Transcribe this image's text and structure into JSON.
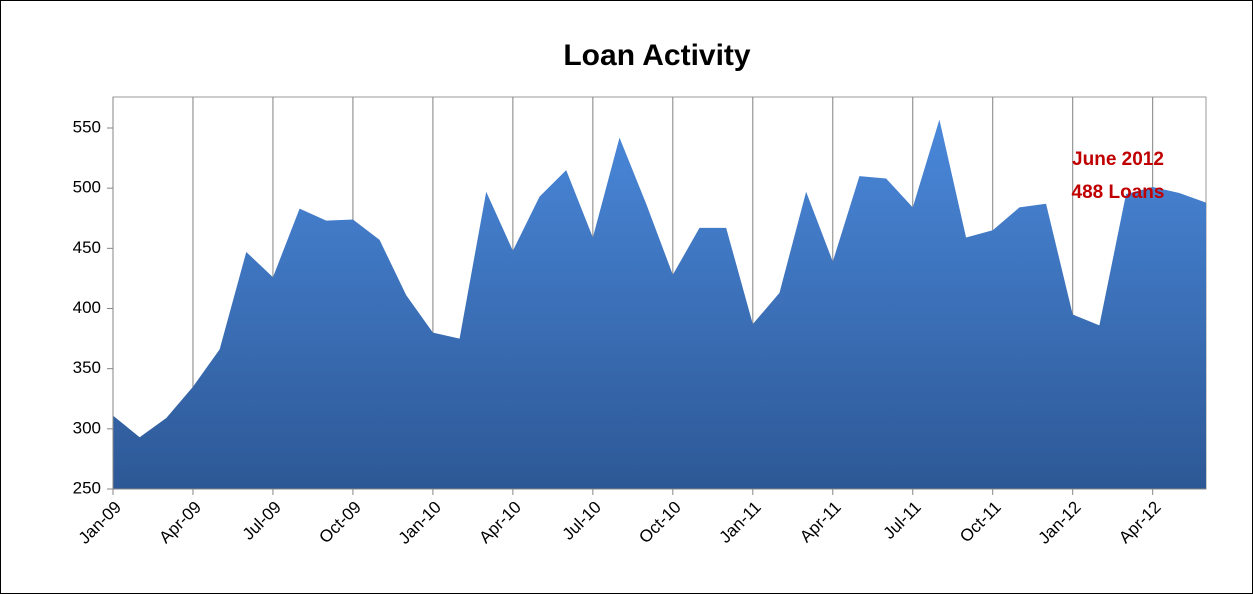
{
  "chart_data": {
    "type": "area",
    "title": "Loan Activity",
    "categories": [
      "Jan-09",
      null,
      null,
      "Apr-09",
      null,
      null,
      "Jul-09",
      null,
      null,
      "Oct-09",
      null,
      null,
      "Jan-10",
      null,
      null,
      "Apr-10",
      null,
      null,
      "Jul-10",
      null,
      null,
      "Oct-10",
      null,
      null,
      "Jan-11",
      null,
      null,
      "Apr-11",
      null,
      null,
      "Jul-11",
      null,
      null,
      "Oct-11",
      null,
      null,
      "Jan-12",
      null,
      null,
      "Apr-12",
      null,
      null
    ],
    "values": [
      311,
      293,
      309,
      335,
      366,
      447,
      426,
      483,
      473,
      474,
      457,
      411,
      380,
      375,
      497,
      448,
      493,
      515,
      459,
      542,
      487,
      428,
      467,
      467,
      387,
      413,
      497,
      439,
      510,
      508,
      484,
      557,
      459,
      465,
      484,
      487,
      395,
      386,
      495,
      501,
      496,
      488
    ],
    "color": "#3b72bd",
    "ylim": [
      250,
      550
    ],
    "yticks": [
      250,
      300,
      350,
      400,
      450,
      500,
      550
    ],
    "ymax_visible": 575,
    "xgrid": true,
    "annotations": [
      "June 2012",
      "488 Loans"
    ]
  }
}
